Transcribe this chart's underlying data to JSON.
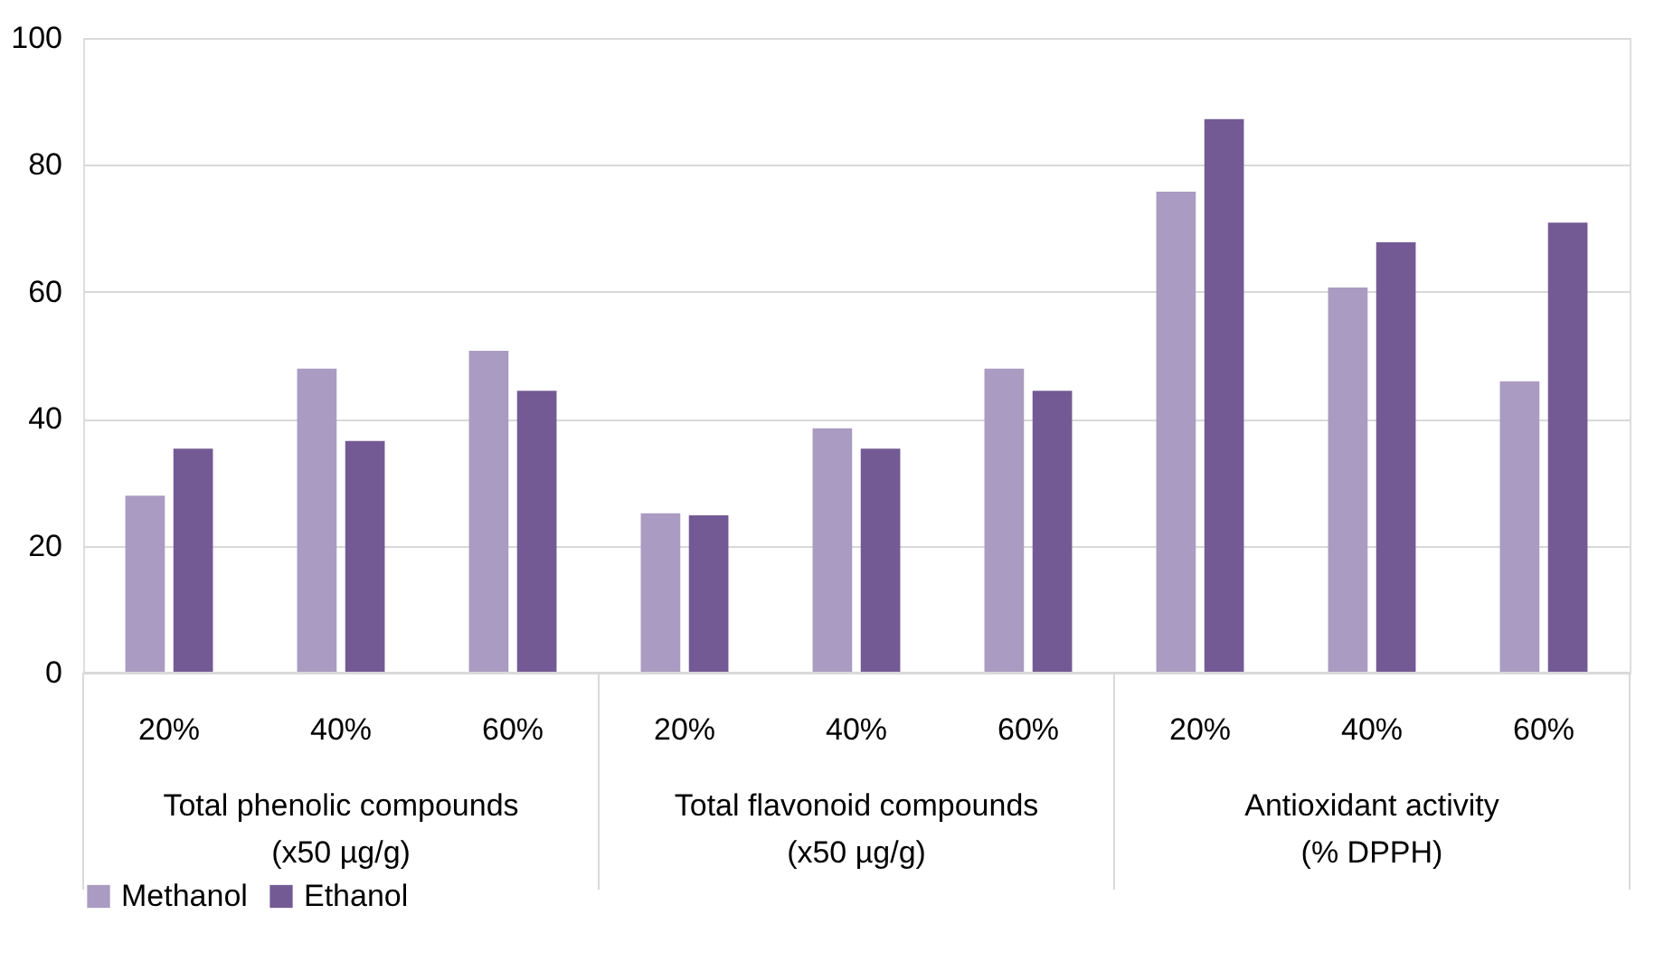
{
  "chart_data": {
    "type": "bar",
    "categories": [
      "20%",
      "40%",
      "60%",
      "20%",
      "40%",
      "60%",
      "20%",
      "40%",
      "60%"
    ],
    "annotations": [
      "Total phenolic compounds\n(x50 µg/g)",
      "Total flavonoid compounds\n(x50 µg/g)",
      "Antioxidant activity\n(% DPPH)"
    ],
    "series": [
      {
        "name": "Methanol",
        "color": "#a99bc1",
        "values": [
          27.9,
          47.9,
          50.7,
          25.1,
          38.5,
          47.9,
          75.8,
          60.7,
          45.9
        ]
      },
      {
        "name": "Ethanol",
        "color": "#735a95",
        "values": [
          35.3,
          36.5,
          44.4,
          24.8,
          35.3,
          44.4,
          87.2,
          67.8,
          70.9
        ]
      }
    ],
    "ylim": [
      0,
      100
    ],
    "yticks": [
      0,
      20,
      40,
      60,
      80,
      100
    ],
    "grid": "y",
    "legend": "bottom"
  }
}
